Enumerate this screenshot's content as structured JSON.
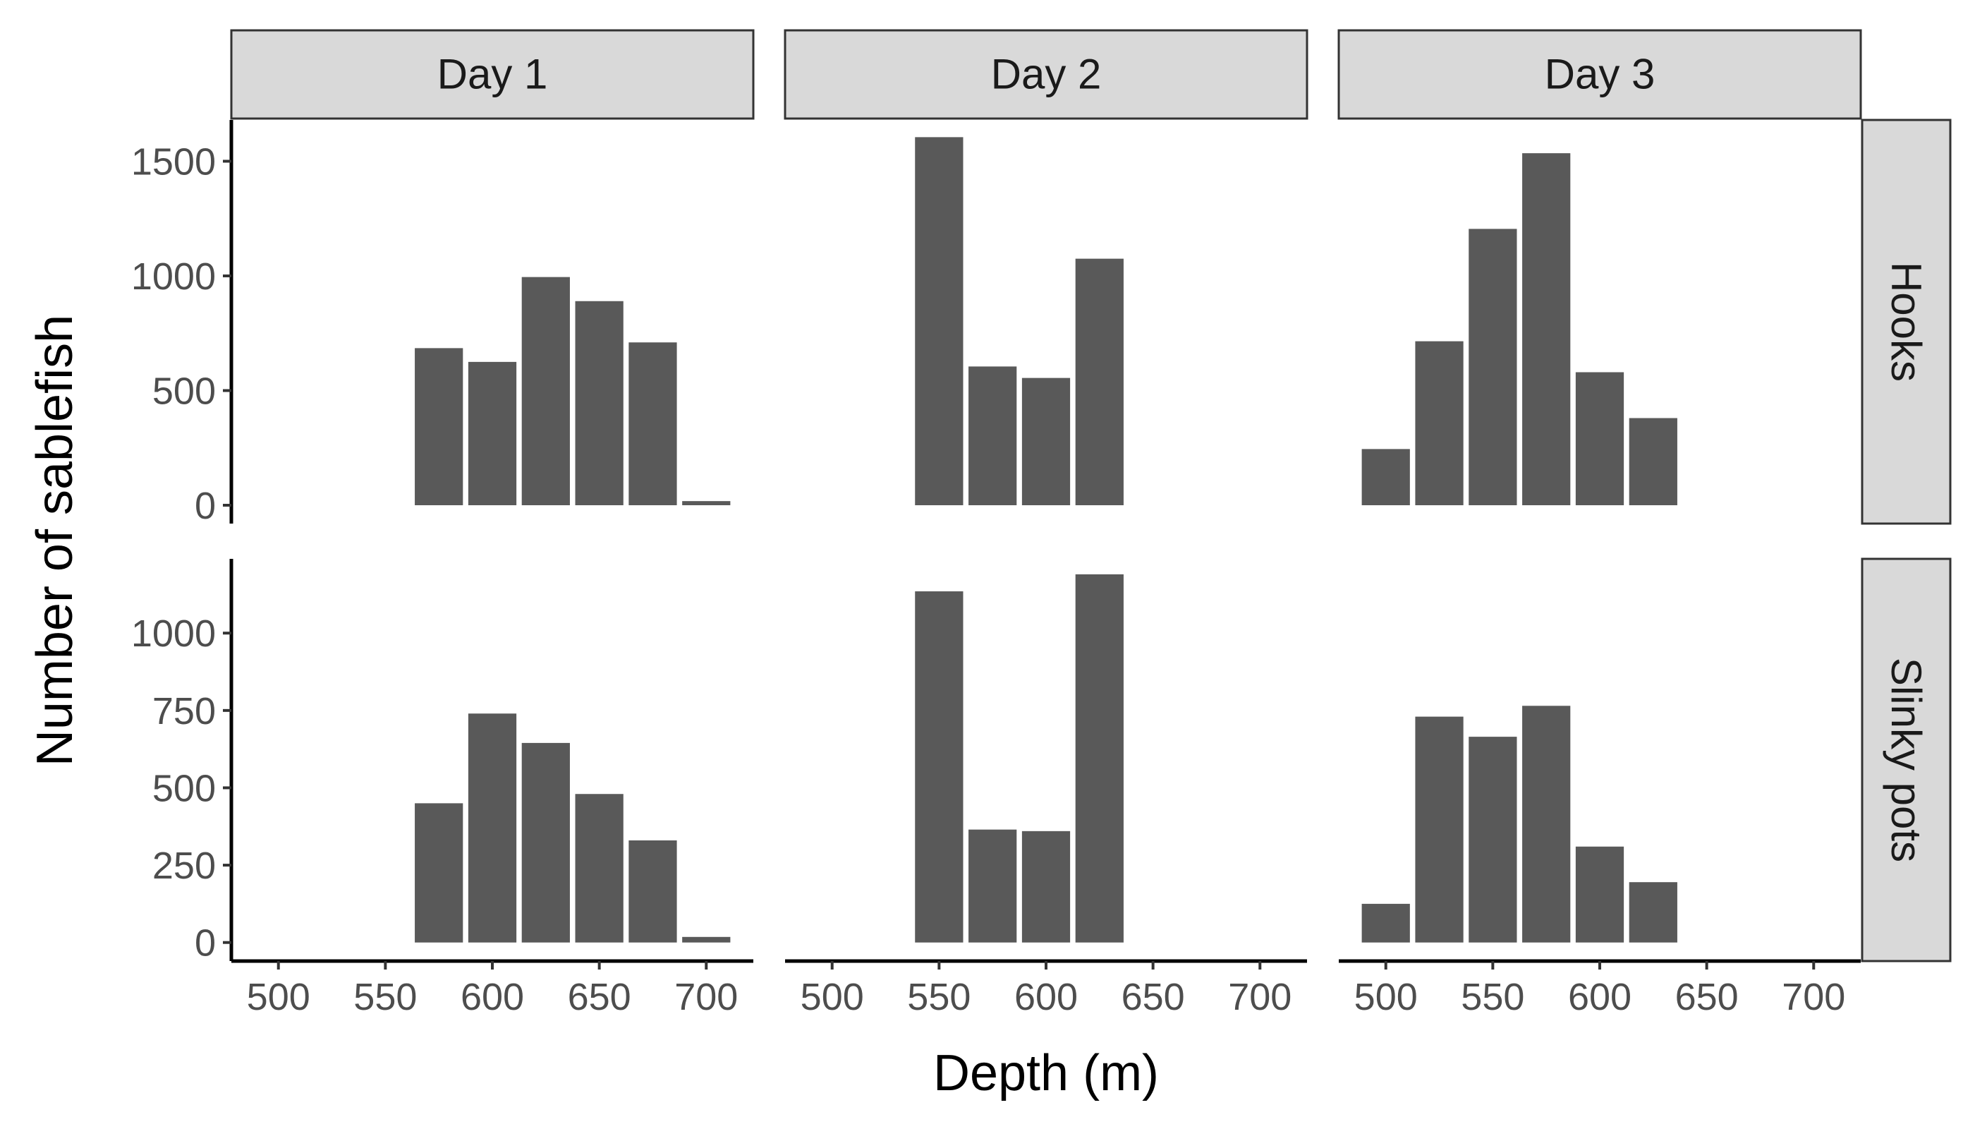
{
  "chart_data": {
    "type": "bar",
    "facet_columns": [
      "Day 1",
      "Day 2",
      "Day 3"
    ],
    "facet_rows": [
      "Hooks",
      "Slinky pots"
    ],
    "xlabel": "Depth (m)",
    "ylabel": "Number of sablefish",
    "xlim": [
      478,
      722
    ],
    "x_ticks": [
      500,
      550,
      600,
      650,
      700
    ],
    "x_tick_labels": [
      "500",
      "550",
      "600",
      "650",
      "700"
    ],
    "bar_width": 22.5,
    "bar_color": "#595959",
    "scales": "free_y",
    "row_scales": [
      {
        "row": "Hooks",
        "ylim": [
          -80,
          1680
        ],
        "y_ticks": [
          0,
          500,
          1000,
          1500
        ],
        "y_tick_labels": [
          "0",
          "500",
          "1000",
          "1500"
        ]
      },
      {
        "row": "Slinky pots",
        "ylim": [
          -60,
          1240
        ],
        "y_ticks": [
          0,
          250,
          500,
          750,
          1000
        ],
        "y_tick_labels": [
          "0",
          "250",
          "500",
          "750",
          "1000"
        ]
      }
    ],
    "panels": [
      {
        "row": "Hooks",
        "column": "Day 1",
        "bars": [
          {
            "x": 575,
            "y": 685
          },
          {
            "x": 600,
            "y": 625
          },
          {
            "x": 625,
            "y": 995
          },
          {
            "x": 650,
            "y": 890
          },
          {
            "x": 675,
            "y": 710
          },
          {
            "x": 700,
            "y": 18
          }
        ]
      },
      {
        "row": "Hooks",
        "column": "Day 2",
        "bars": [
          {
            "x": 550,
            "y": 1605
          },
          {
            "x": 575,
            "y": 605
          },
          {
            "x": 600,
            "y": 555
          },
          {
            "x": 625,
            "y": 1075
          }
        ]
      },
      {
        "row": "Hooks",
        "column": "Day 3",
        "bars": [
          {
            "x": 500,
            "y": 245
          },
          {
            "x": 525,
            "y": 715
          },
          {
            "x": 550,
            "y": 1205
          },
          {
            "x": 575,
            "y": 1535
          },
          {
            "x": 600,
            "y": 580
          },
          {
            "x": 625,
            "y": 380
          }
        ]
      },
      {
        "row": "Slinky pots",
        "column": "Day 1",
        "bars": [
          {
            "x": 575,
            "y": 450
          },
          {
            "x": 600,
            "y": 740
          },
          {
            "x": 625,
            "y": 645
          },
          {
            "x": 650,
            "y": 480
          },
          {
            "x": 675,
            "y": 330
          },
          {
            "x": 700,
            "y": 18
          }
        ]
      },
      {
        "row": "Slinky pots",
        "column": "Day 2",
        "bars": [
          {
            "x": 550,
            "y": 1135
          },
          {
            "x": 575,
            "y": 365
          },
          {
            "x": 600,
            "y": 360
          },
          {
            "x": 625,
            "y": 1190
          }
        ]
      },
      {
        "row": "Slinky pots",
        "column": "Day 3",
        "bars": [
          {
            "x": 500,
            "y": 125
          },
          {
            "x": 525,
            "y": 730
          },
          {
            "x": 550,
            "y": 665
          },
          {
            "x": 575,
            "y": 765
          },
          {
            "x": 600,
            "y": 310
          },
          {
            "x": 625,
            "y": 195
          }
        ]
      }
    ]
  }
}
